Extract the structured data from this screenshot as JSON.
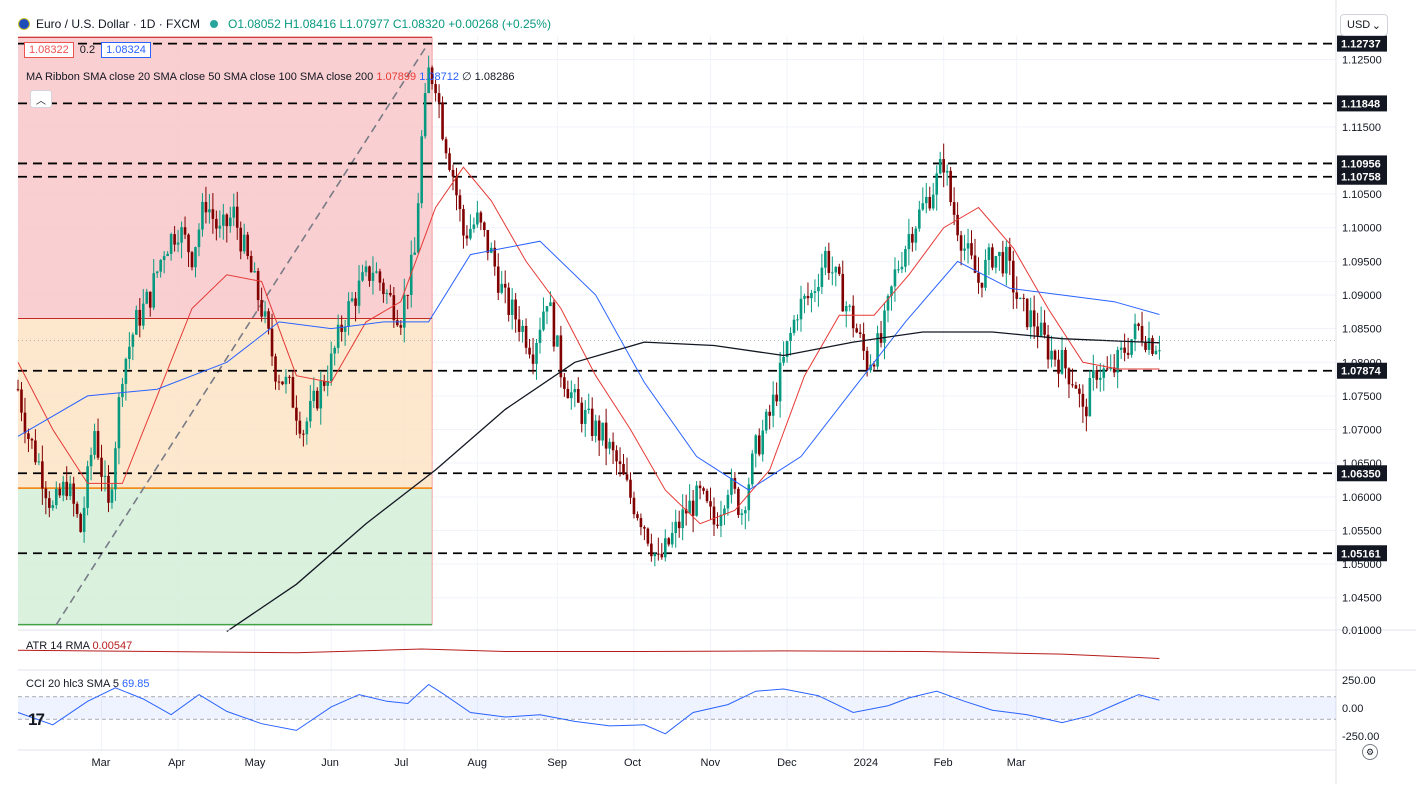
{
  "header": {
    "symbol": "Euro / U.S. Dollar · 1D · FXCM",
    "ohlc": "O1.08052 H1.08416 L1.07977 C1.08320 +0.00268 (+0.25%)"
  },
  "quote": {
    "bid": "1.08322",
    "spread": "0.2",
    "ask": "1.08324"
  },
  "ma_legend": {
    "label": "MA Ribbon SMA close 20 SMA close 50 SMA close 100 SMA close 200",
    "v20": "1.07899",
    "v50": "1.08712",
    "v200": "1.08286",
    "empty": "∅"
  },
  "atr_legend": {
    "label": "ATR 14 RMA",
    "value": "0.00547"
  },
  "cci_legend": {
    "label": "CCI 20 hlc3 SMA 5",
    "value": "69.85"
  },
  "currency": "USD",
  "icons": {
    "collapse": "chevron-up-icon",
    "settings": "settings-icon",
    "flag": "eur-usd-flag-icon",
    "logo": "tradingview-logo-icon"
  },
  "colors": {
    "up": "#089981",
    "down": "#800000",
    "sma20": "#e53935",
    "sma50": "#2962ff",
    "sma200": "#131722",
    "fib_red": "#f9c7c9",
    "fib_orange": "#fde3c4",
    "fib_green": "#d4efd8"
  },
  "chart_data": {
    "type": "candlestick",
    "price_axis": {
      "ticks": [
        "1.12500",
        "1.11500",
        "1.10500",
        "1.10000",
        "1.09500",
        "1.09000",
        "1.08500",
        "1.08000",
        "1.07500",
        "1.07000",
        "1.06500",
        "1.06000",
        "1.05500",
        "1.05000",
        "1.04500"
      ],
      "range": [
        1.0405,
        1.1285
      ]
    },
    "level_labels": [
      "1.12737",
      "1.11848",
      "1.10956",
      "1.10758",
      "1.07874",
      "1.06350",
      "1.05161"
    ],
    "levels": [
      1.12737,
      1.11848,
      1.10956,
      1.10758,
      1.07874,
      1.0635,
      1.05161
    ],
    "time_axis": [
      "Mar",
      "Apr",
      "May",
      "Jun",
      "Jul",
      "Aug",
      "Sep",
      "Oct",
      "Nov",
      "Dec",
      "2024",
      "Feb",
      "Mar"
    ],
    "fib_zones": [
      {
        "name": "upper",
        "from": 1.0865,
        "to": 1.1285,
        "color": "#f9c7c9"
      },
      {
        "name": "middle",
        "from": 1.0613,
        "to": 1.0865,
        "color": "#fde3c4"
      },
      {
        "name": "lower",
        "from": 1.041,
        "to": 1.0613,
        "color": "#d4efd8"
      }
    ],
    "atr_axis": {
      "ticks": [
        "0.01000"
      ]
    },
    "cci_axis": {
      "ticks": [
        "250.00",
        "0.00",
        "-250.00"
      ]
    },
    "close_path": [
      [
        0,
        1.076
      ],
      [
        3,
        1.069
      ],
      [
        6,
        1.065
      ],
      [
        10,
        1.058
      ],
      [
        14,
        1.062
      ],
      [
        18,
        1.055
      ],
      [
        22,
        1.07
      ],
      [
        26,
        1.058
      ],
      [
        30,
        1.079
      ],
      [
        34,
        1.086
      ],
      [
        38,
        1.09
      ],
      [
        42,
        1.097
      ],
      [
        46,
        1.1
      ],
      [
        50,
        1.096
      ],
      [
        54,
        1.104
      ],
      [
        58,
        1.099
      ],
      [
        62,
        1.102
      ],
      [
        66,
        1.095
      ],
      [
        70,
        1.088
      ],
      [
        74,
        1.079
      ],
      [
        78,
        1.076
      ],
      [
        82,
        1.07
      ],
      [
        86,
        1.075
      ],
      [
        90,
        1.08
      ],
      [
        94,
        1.087
      ],
      [
        98,
        1.091
      ],
      [
        102,
        1.094
      ],
      [
        106,
        1.09
      ],
      [
        110,
        1.087
      ],
      [
        114,
        1.096
      ],
      [
        116,
        1.113
      ],
      [
        118,
        1.123
      ],
      [
        120,
        1.122
      ],
      [
        122,
        1.115
      ],
      [
        125,
        1.108
      ],
      [
        128,
        1.099
      ],
      [
        132,
        1.101
      ],
      [
        136,
        1.096
      ],
      [
        140,
        1.089
      ],
      [
        144,
        1.086
      ],
      [
        148,
        1.082
      ],
      [
        152,
        1.09
      ],
      [
        156,
        1.079
      ],
      [
        160,
        1.074
      ],
      [
        164,
        1.071
      ],
      [
        168,
        1.069
      ],
      [
        172,
        1.065
      ],
      [
        176,
        1.06
      ],
      [
        180,
        1.056
      ],
      [
        184,
        1.05
      ],
      [
        188,
        1.054
      ],
      [
        192,
        1.058
      ],
      [
        196,
        1.06
      ],
      [
        200,
        1.056
      ],
      [
        204,
        1.062
      ],
      [
        208,
        1.058
      ],
      [
        212,
        1.067
      ],
      [
        216,
        1.072
      ],
      [
        220,
        1.08
      ],
      [
        224,
        1.088
      ],
      [
        228,
        1.09
      ],
      [
        232,
        1.096
      ],
      [
        236,
        1.091
      ],
      [
        240,
        1.086
      ],
      [
        244,
        1.08
      ],
      [
        248,
        1.083
      ],
      [
        252,
        1.093
      ],
      [
        256,
        1.099
      ],
      [
        260,
        1.103
      ],
      [
        264,
        1.107
      ],
      [
        266,
        1.11
      ],
      [
        268,
        1.104
      ],
      [
        272,
        1.097
      ],
      [
        276,
        1.092
      ],
      [
        280,
        1.096
      ],
      [
        284,
        1.095
      ],
      [
        288,
        1.088
      ],
      [
        292,
        1.086
      ],
      [
        296,
        1.082
      ],
      [
        300,
        1.08
      ],
      [
        304,
        1.077
      ],
      [
        306,
        1.072
      ],
      [
        310,
        1.079
      ],
      [
        314,
        1.078
      ],
      [
        318,
        1.082
      ],
      [
        322,
        1.085
      ],
      [
        326,
        1.083
      ],
      [
        328,
        1.0832
      ]
    ],
    "sma20_path": [
      [
        0,
        1.08
      ],
      [
        10,
        1.07
      ],
      [
        20,
        1.062
      ],
      [
        30,
        1.062
      ],
      [
        40,
        1.075
      ],
      [
        50,
        1.088
      ],
      [
        60,
        1.093
      ],
      [
        70,
        1.092
      ],
      [
        80,
        1.078
      ],
      [
        90,
        1.077
      ],
      [
        100,
        1.086
      ],
      [
        110,
        1.089
      ],
      [
        120,
        1.103
      ],
      [
        128,
        1.109
      ],
      [
        136,
        1.104
      ],
      [
        146,
        1.095
      ],
      [
        156,
        1.088
      ],
      [
        166,
        1.078
      ],
      [
        176,
        1.07
      ],
      [
        186,
        1.061
      ],
      [
        196,
        1.056
      ],
      [
        206,
        1.058
      ],
      [
        216,
        1.064
      ],
      [
        226,
        1.078
      ],
      [
        236,
        1.087
      ],
      [
        246,
        1.087
      ],
      [
        256,
        1.093
      ],
      [
        266,
        1.1
      ],
      [
        276,
        1.103
      ],
      [
        286,
        1.097
      ],
      [
        296,
        1.088
      ],
      [
        306,
        1.08
      ],
      [
        316,
        1.079
      ],
      [
        328,
        1.079
      ]
    ],
    "sma50_path": [
      [
        0,
        1.069
      ],
      [
        20,
        1.075
      ],
      [
        40,
        1.076
      ],
      [
        60,
        1.08
      ],
      [
        75,
        1.086
      ],
      [
        90,
        1.085
      ],
      [
        105,
        1.086
      ],
      [
        118,
        1.086
      ],
      [
        130,
        1.096
      ],
      [
        150,
        1.098
      ],
      [
        166,
        1.09
      ],
      [
        180,
        1.077
      ],
      [
        195,
        1.066
      ],
      [
        210,
        1.061
      ],
      [
        225,
        1.066
      ],
      [
        240,
        1.076
      ],
      [
        255,
        1.086
      ],
      [
        270,
        1.095
      ],
      [
        285,
        1.091
      ],
      [
        300,
        1.09
      ],
      [
        315,
        1.089
      ],
      [
        328,
        1.0871
      ]
    ],
    "sma200_path": [
      [
        60,
        1.04
      ],
      [
        80,
        1.047
      ],
      [
        100,
        1.056
      ],
      [
        120,
        1.064
      ],
      [
        140,
        1.073
      ],
      [
        160,
        1.08
      ],
      [
        180,
        1.083
      ],
      [
        200,
        1.0825
      ],
      [
        220,
        1.081
      ],
      [
        240,
        1.083
      ],
      [
        260,
        1.0845
      ],
      [
        280,
        1.0845
      ],
      [
        300,
        1.0835
      ],
      [
        328,
        1.0829
      ]
    ],
    "atr_path": [
      [
        0,
        0.0068
      ],
      [
        40,
        0.0066
      ],
      [
        80,
        0.0064
      ],
      [
        116,
        0.007
      ],
      [
        140,
        0.0066
      ],
      [
        180,
        0.0066
      ],
      [
        220,
        0.0067
      ],
      [
        260,
        0.0066
      ],
      [
        300,
        0.0062
      ],
      [
        328,
        0.0055
      ]
    ],
    "cci_path": [
      [
        0,
        -40
      ],
      [
        10,
        -150
      ],
      [
        20,
        60
      ],
      [
        28,
        180
      ],
      [
        36,
        80
      ],
      [
        44,
        -60
      ],
      [
        52,
        120
      ],
      [
        60,
        -30
      ],
      [
        70,
        -140
      ],
      [
        80,
        -200
      ],
      [
        90,
        10
      ],
      [
        98,
        120
      ],
      [
        106,
        60
      ],
      [
        112,
        40
      ],
      [
        118,
        210
      ],
      [
        122,
        130
      ],
      [
        130,
        -40
      ],
      [
        140,
        -80
      ],
      [
        150,
        -60
      ],
      [
        160,
        -120
      ],
      [
        170,
        -160
      ],
      [
        180,
        -150
      ],
      [
        186,
        -230
      ],
      [
        194,
        -40
      ],
      [
        204,
        30
      ],
      [
        212,
        150
      ],
      [
        220,
        170
      ],
      [
        230,
        110
      ],
      [
        240,
        -40
      ],
      [
        250,
        20
      ],
      [
        256,
        90
      ],
      [
        264,
        150
      ],
      [
        272,
        60
      ],
      [
        280,
        -20
      ],
      [
        290,
        -60
      ],
      [
        300,
        -130
      ],
      [
        308,
        -70
      ],
      [
        316,
        40
      ],
      [
        322,
        120
      ],
      [
        328,
        70
      ]
    ]
  }
}
